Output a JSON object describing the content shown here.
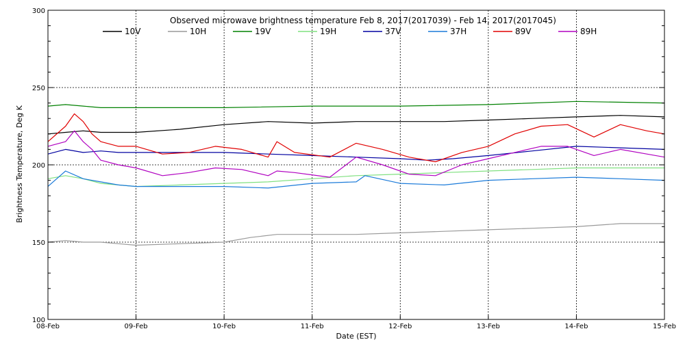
{
  "chart_data": {
    "type": "line",
    "title": "Observed microwave brightness temperature Feb  8, 2017(2017039) - Feb 14, 2017(2017045)",
    "xlabel": "Date (EST)",
    "ylabel": "Brightness Temperature, Deg K",
    "ylim": [
      100,
      300
    ],
    "xlim": [
      0,
      7
    ],
    "y_ticks": [
      100,
      150,
      200,
      250,
      300
    ],
    "x_ticks": [
      {
        "x": 0,
        "label": "08-Feb"
      },
      {
        "x": 1,
        "label": "09-Feb"
      },
      {
        "x": 2,
        "label": "10-Feb"
      },
      {
        "x": 3,
        "label": "11-Feb"
      },
      {
        "x": 4,
        "label": "12-Feb"
      },
      {
        "x": 5,
        "label": "13-Feb"
      },
      {
        "x": 6,
        "label": "14-Feb"
      },
      {
        "x": 7,
        "label": "15-Feb"
      }
    ],
    "grid": "dotted",
    "legend_position": "top",
    "series": [
      {
        "name": "10V",
        "color": "#000000",
        "x": [
          0,
          0.2,
          0.4,
          0.6,
          0.8,
          1,
          1.5,
          2,
          2.5,
          3,
          3.5,
          4,
          4.5,
          5,
          5.5,
          6,
          6.5,
          7
        ],
        "values": [
          220,
          221,
          222,
          221,
          221,
          221,
          223,
          226,
          228,
          227,
          228,
          228,
          228,
          229,
          230,
          231,
          232,
          231
        ]
      },
      {
        "name": "10H",
        "color": "#999999",
        "x": [
          0,
          0.2,
          0.4,
          0.6,
          0.8,
          1,
          1.5,
          2,
          2.3,
          2.6,
          3,
          3.5,
          4,
          4.5,
          5,
          5.5,
          6,
          6.5,
          7
        ],
        "values": [
          150,
          151,
          150,
          150,
          149,
          148,
          149,
          150,
          153,
          155,
          155,
          155,
          156,
          157,
          158,
          159,
          160,
          162,
          162
        ]
      },
      {
        "name": "19V",
        "color": "#008000",
        "x": [
          0,
          0.2,
          0.4,
          0.6,
          0.8,
          1,
          2,
          3,
          4,
          5,
          6,
          7
        ],
        "values": [
          238,
          239,
          238,
          237,
          237,
          237,
          237,
          238,
          238,
          239,
          241,
          240
        ]
      },
      {
        "name": "19H",
        "color": "#7fe07f",
        "x": [
          0,
          0.2,
          0.4,
          0.6,
          0.8,
          1,
          1.5,
          2,
          2.5,
          3,
          3.5,
          4,
          4.5,
          5,
          5.5,
          6,
          6.5,
          7
        ],
        "values": [
          191,
          193,
          191,
          188,
          187,
          186,
          187,
          188,
          189,
          191,
          193,
          194,
          195,
          196,
          197,
          198,
          198,
          198
        ]
      },
      {
        "name": "37V",
        "color": "#0000a0",
        "x": [
          0,
          0.2,
          0.4,
          0.6,
          0.8,
          1,
          1.5,
          2,
          2.5,
          3,
          3.5,
          4,
          4.3,
          4.6,
          5,
          5.5,
          6,
          6.5,
          7
        ],
        "values": [
          207,
          210,
          208,
          209,
          208,
          208,
          208,
          208,
          207,
          206,
          205,
          204,
          203,
          204,
          206,
          209,
          212,
          211,
          210
        ]
      },
      {
        "name": "37H",
        "color": "#1a7ad9",
        "x": [
          0,
          0.2,
          0.4,
          0.6,
          0.8,
          1,
          1.5,
          2,
          2.5,
          3,
          3.5,
          3.6,
          4,
          4.5,
          5,
          5.5,
          6,
          6.5,
          7
        ],
        "values": [
          186,
          196,
          191,
          189,
          187,
          186,
          186,
          186,
          185,
          188,
          189,
          193,
          188,
          187,
          190,
          191,
          192,
          191,
          190
        ]
      },
      {
        "name": "89V",
        "color": "#e00000",
        "x": [
          0,
          0.2,
          0.3,
          0.4,
          0.5,
          0.6,
          0.8,
          1,
          1.3,
          1.6,
          1.9,
          2.2,
          2.5,
          2.6,
          2.8,
          3.2,
          3.5,
          3.8,
          4.1,
          4.4,
          4.7,
          5,
          5.3,
          5.6,
          5.9,
          6.2,
          6.5,
          6.8,
          7
        ],
        "values": [
          215,
          225,
          233,
          228,
          220,
          215,
          212,
          212,
          207,
          208,
          212,
          210,
          205,
          215,
          208,
          205,
          214,
          210,
          205,
          202,
          208,
          212,
          220,
          225,
          226,
          218,
          226,
          222,
          220
        ]
      },
      {
        "name": "89H",
        "color": "#b000c0",
        "x": [
          0,
          0.2,
          0.3,
          0.4,
          0.5,
          0.6,
          0.8,
          1,
          1.3,
          1.6,
          1.9,
          2.2,
          2.5,
          2.6,
          2.8,
          3.2,
          3.5,
          3.8,
          4.1,
          4.4,
          4.7,
          5,
          5.3,
          5.6,
          5.9,
          6.2,
          6.5,
          6.8,
          7
        ],
        "values": [
          212,
          215,
          222,
          215,
          210,
          203,
          200,
          198,
          193,
          195,
          198,
          197,
          193,
          196,
          195,
          192,
          205,
          200,
          194,
          193,
          200,
          204,
          208,
          212,
          212,
          206,
          210,
          207,
          205
        ]
      }
    ]
  }
}
